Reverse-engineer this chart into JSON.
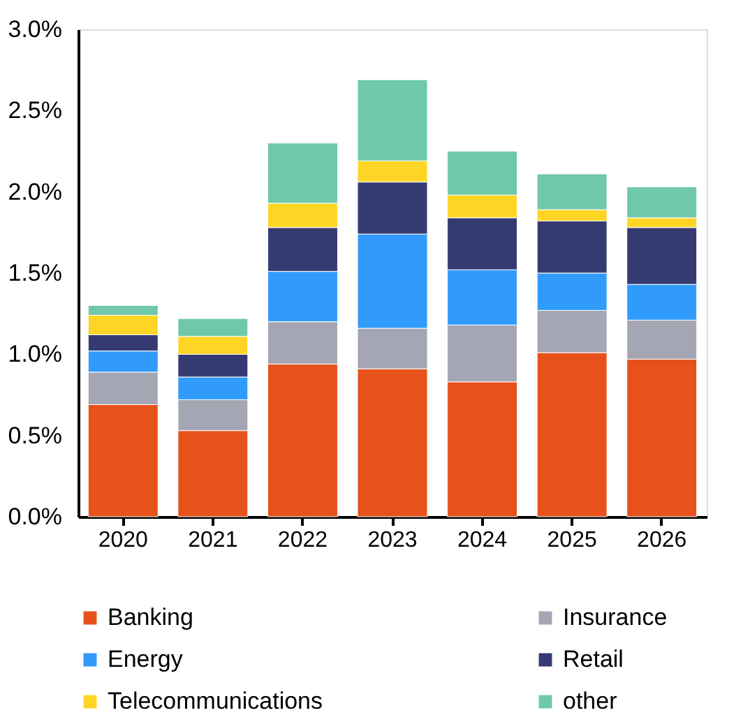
{
  "chart_data": {
    "type": "bar",
    "stacked": true,
    "categories": [
      "2020",
      "2021",
      "2022",
      "2023",
      "2024",
      "2025",
      "2026"
    ],
    "series": [
      {
        "name": "Banking",
        "color": "#e6521a",
        "values": [
          0.69,
          0.53,
          0.94,
          0.91,
          0.83,
          1.01,
          0.97
        ]
      },
      {
        "name": "Insurance",
        "color": "#a5a6b4",
        "values": [
          0.2,
          0.19,
          0.26,
          0.25,
          0.35,
          0.26,
          0.24
        ]
      },
      {
        "name": "Energy",
        "color": "#319bfc",
        "values": [
          0.13,
          0.14,
          0.31,
          0.58,
          0.34,
          0.23,
          0.22
        ]
      },
      {
        "name": "Retail",
        "color": "#353b72",
        "values": [
          0.1,
          0.14,
          0.27,
          0.32,
          0.32,
          0.32,
          0.35
        ]
      },
      {
        "name": "Telecommunications",
        "color": "#fed525",
        "values": [
          0.12,
          0.11,
          0.15,
          0.13,
          0.14,
          0.07,
          0.06
        ]
      },
      {
        "name": "other",
        "color": "#6fc9a9",
        "values": [
          0.06,
          0.11,
          0.37,
          0.5,
          0.27,
          0.22,
          0.19
        ]
      }
    ],
    "ylim": [
      0,
      3.0
    ],
    "yticks": [
      {
        "value": 0,
        "label": "0.0%"
      },
      {
        "value": 0.5,
        "label": "0.5%"
      },
      {
        "value": 1.0,
        "label": "1.0%"
      },
      {
        "value": 1.5,
        "label": "1.5%"
      },
      {
        "value": 2.0,
        "label": "2.0%"
      },
      {
        "value": 2.5,
        "label": "2.5%"
      },
      {
        "value": 3.0,
        "label": "3.0%"
      }
    ],
    "grid": false,
    "legend": "bottom"
  }
}
